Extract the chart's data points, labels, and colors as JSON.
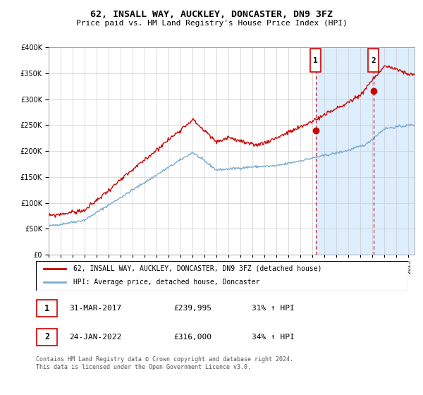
{
  "title": "62, INSALL WAY, AUCKLEY, DONCASTER, DN9 3FZ",
  "subtitle": "Price paid vs. HM Land Registry's House Price Index (HPI)",
  "legend_line1": "62, INSALL WAY, AUCKLEY, DONCASTER, DN9 3FZ (detached house)",
  "legend_line2": "HPI: Average price, detached house, Doncaster",
  "sale1_date": "31-MAR-2017",
  "sale1_price": "£239,995",
  "sale1_hpi": "31% ↑ HPI",
  "sale1_year": 2017.25,
  "sale1_value": 239995,
  "sale2_date": "24-JAN-2022",
  "sale2_price": "£316,000",
  "sale2_hpi": "34% ↑ HPI",
  "sale2_year": 2022.07,
  "sale2_value": 316000,
  "footer": "Contains HM Land Registry data © Crown copyright and database right 2024.\nThis data is licensed under the Open Government Licence v3.0.",
  "ylim": [
    0,
    400000
  ],
  "xlim_start": 1995,
  "xlim_end": 2025.5,
  "red_color": "#cc0000",
  "blue_color": "#7aaad0",
  "shade_color": "#ddeeff",
  "background_color": "#ffffff",
  "grid_color": "#cccccc"
}
